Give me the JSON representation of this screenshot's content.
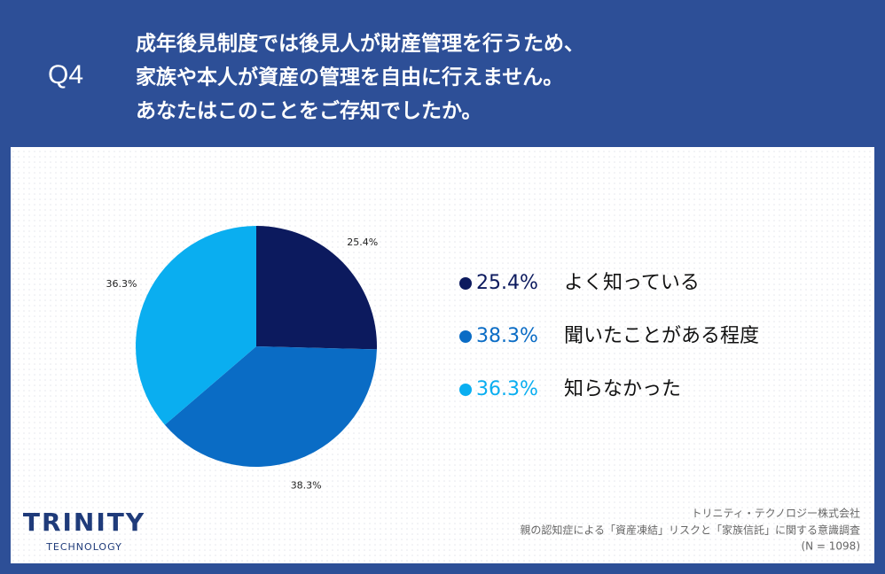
{
  "header": {
    "number": "Q4",
    "title": [
      "成年後見制度では後見人が財産管理を行うため、",
      "家族や本人が資産の管理を自由に行えません。",
      "あなたはこのことをご存知でしたか。"
    ]
  },
  "chart_data": {
    "type": "pie",
    "categories": [
      "よく知っている",
      "聞いたことがある程度",
      "知らなかった"
    ],
    "values": [
      25.4,
      38.3,
      36.3
    ],
    "value_labels": [
      "25.4%",
      "38.3%",
      "36.3%"
    ],
    "colors": [
      "#0c1a5e",
      "#0a6cc5",
      "#0aaef0"
    ]
  },
  "footer": {
    "logo": "TRINITY",
    "logo_sub": "TECHNOLOGY",
    "source": [
      "トリニティ・テクノロジー株式会社",
      "親の認知症による「資産凍結」リスクと「家族信託」に関する意識調査",
      "(N = 1098)"
    ]
  }
}
